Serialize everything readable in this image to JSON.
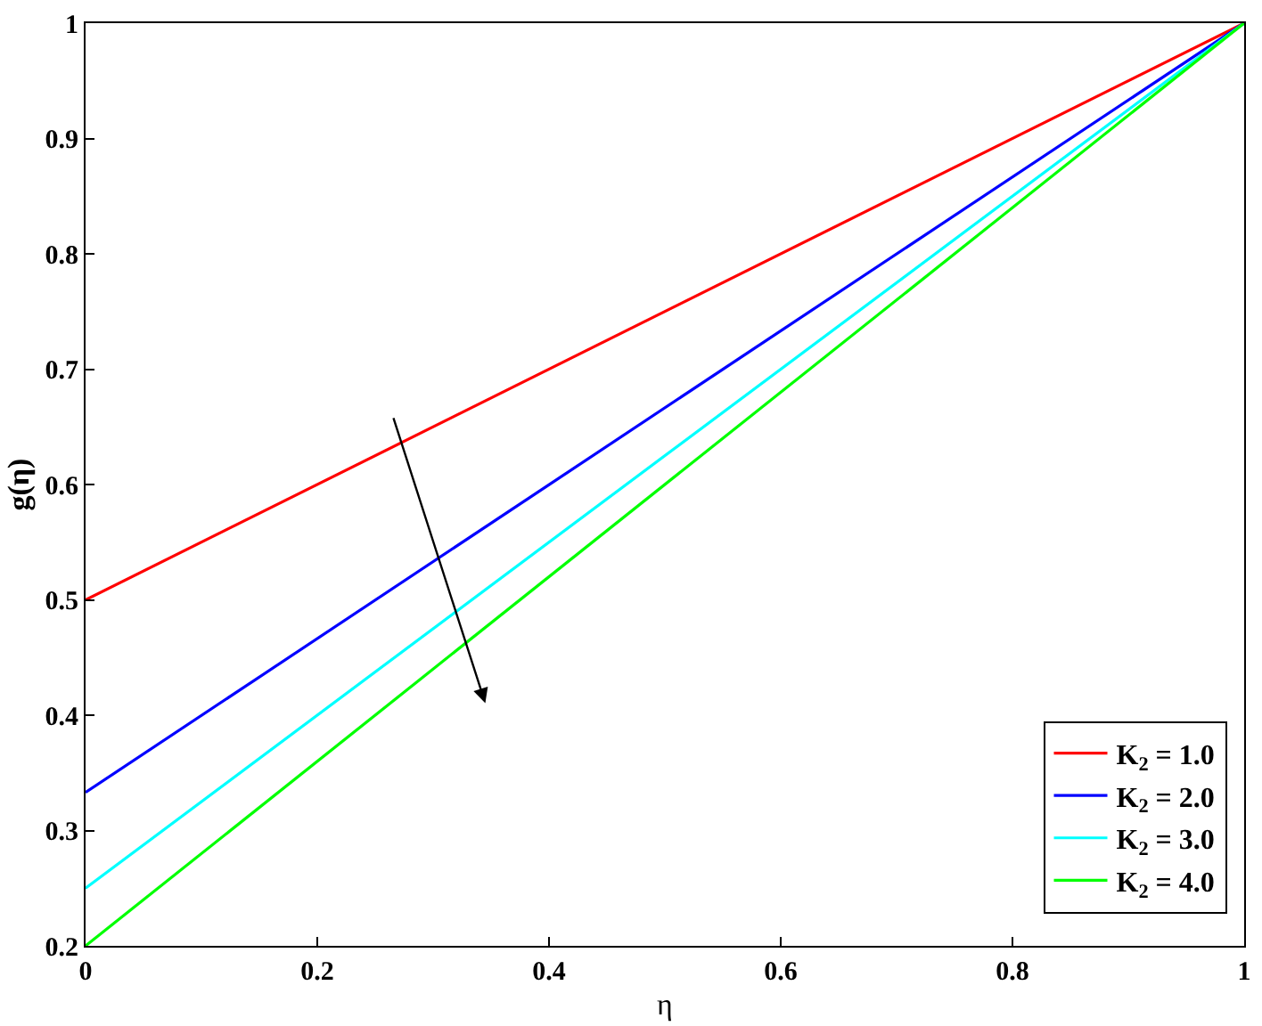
{
  "chart_data": {
    "type": "line",
    "xlabel": "η",
    "ylabel": "g(η)",
    "x": [
      0,
      1
    ],
    "series": [
      {
        "name": "K$_{2}$ = 1.0",
        "color": "#ff0000",
        "values": [
          0.5,
          1
        ]
      },
      {
        "name": "K$_{2}$ = 2.0",
        "color": "#0000ff",
        "values": [
          0.333,
          1
        ]
      },
      {
        "name": "K$_{2}$ = 3.0",
        "color": "#00ffff",
        "values": [
          0.25,
          1
        ]
      },
      {
        "name": "K$_{2}$ = 4.0",
        "color": "#00ff00",
        "values": [
          0.2,
          1
        ]
      }
    ],
    "xlim": [
      0,
      1
    ],
    "xticks": [
      0,
      0.2,
      0.4,
      0.6,
      0.8,
      1
    ],
    "ylim": [
      0.2,
      1
    ],
    "yticks": [
      0.2,
      0.3,
      0.4,
      0.5,
      0.6,
      0.7,
      0.8,
      0.9,
      1
    ],
    "grid": false,
    "legend": "bottom right",
    "marker": "none",
    "line_style": "solid"
  }
}
